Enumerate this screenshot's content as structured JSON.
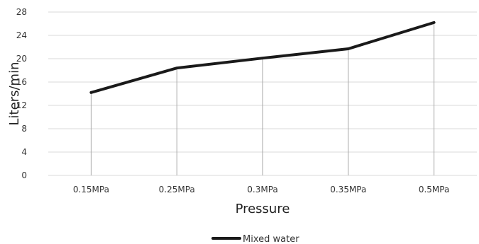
{
  "chart_data": {
    "type": "line",
    "title": "",
    "xlabel": "Pressure",
    "ylabel": "Liters/min",
    "categories": [
      "0.15MPa",
      "0.25MPa",
      "0.3MPa",
      "0.35MPa",
      "0.5MPa"
    ],
    "series": [
      {
        "name": "Mixed water",
        "values": [
          14.2,
          18.4,
          20.1,
          21.7,
          26.2
        ],
        "color": "#1a1a1a"
      }
    ],
    "ylim": [
      0,
      28
    ],
    "yticks": [
      0,
      4,
      8,
      12,
      16,
      20,
      24,
      28
    ],
    "grid": true,
    "drop_lines": true,
    "legend_position": "bottom-center"
  }
}
